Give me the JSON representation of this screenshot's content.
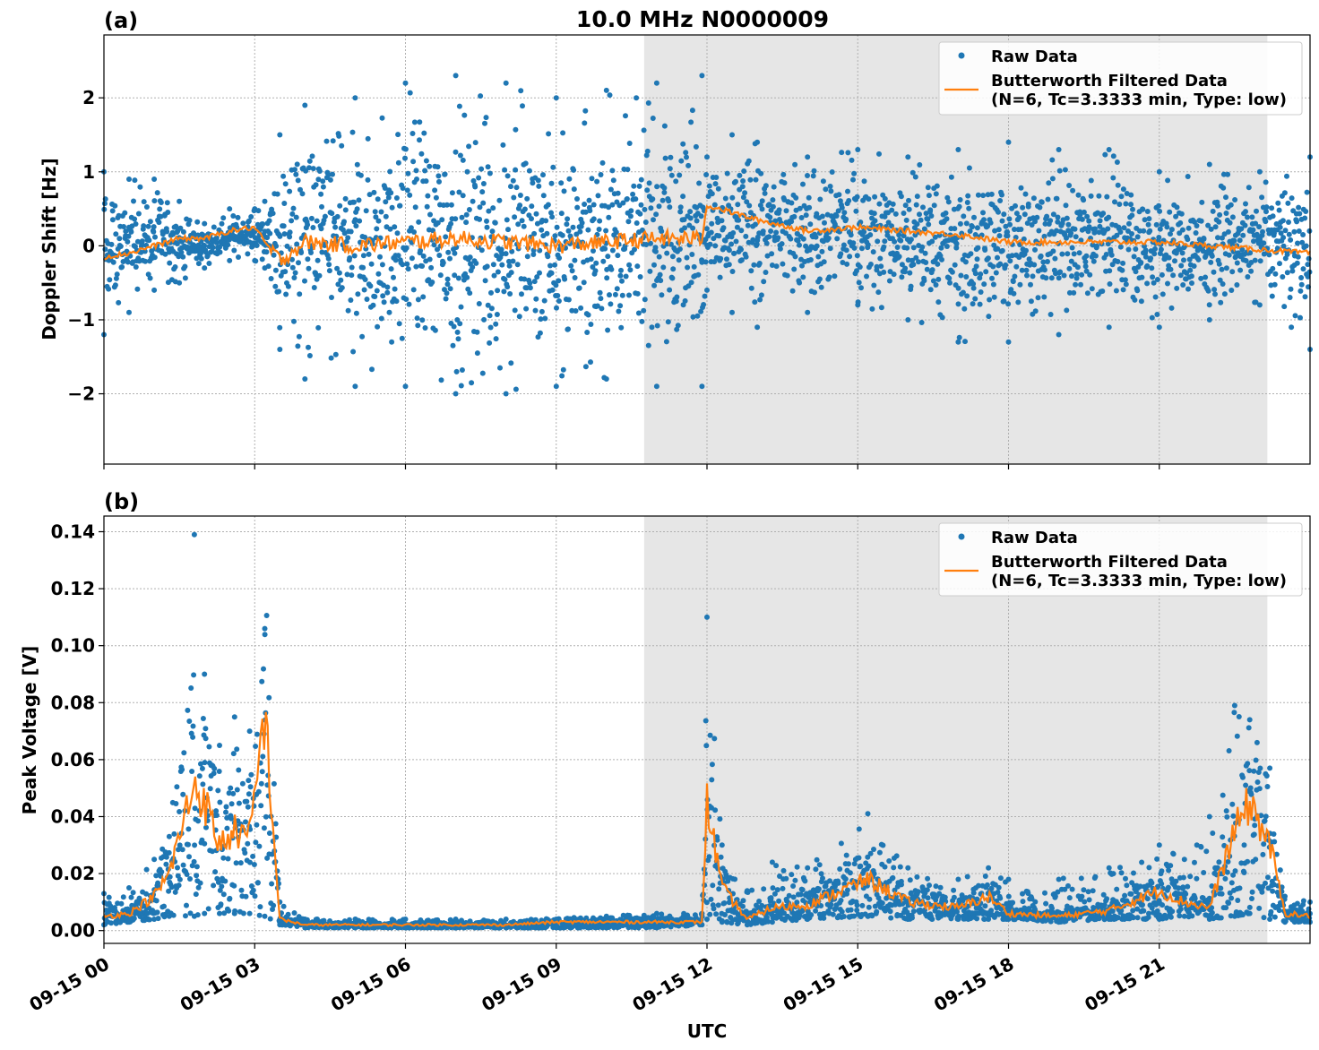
{
  "figure": {
    "title": "10.0 MHz N0000009",
    "xlabel": "UTC",
    "x_tick_labels": [
      "09-15 00",
      "09-15 03",
      "09-15 06",
      "09-15 09",
      "09-15 12",
      "09-15 15",
      "09-15 18",
      "09-15 21"
    ],
    "colors": {
      "raw": "#1f77b4",
      "filtered": "#ff7f0e",
      "shade": "#e6e6e6",
      "grid": "#b0b0b0"
    }
  },
  "legend": {
    "raw": "Raw Data",
    "filtered_line1": "Butterworth Filtered Data",
    "filtered_line2": "(N=6, Tc=3.3333 min, Type: low)"
  },
  "chart_data": [
    {
      "type": "scatter",
      "panel_label": "(a)",
      "title": "10.0 MHz N0000009",
      "xlabel": "",
      "ylabel": "Doppler Shift [Hz]",
      "x_unit": "hours UTC from 2024-09-15 00:00",
      "xlim": [
        0,
        24
      ],
      "ylim": [
        -2.95,
        2.85
      ],
      "yticks": [
        -2,
        -1,
        0,
        1,
        2
      ],
      "ytick_labels": [
        "−2",
        "−1",
        "0",
        "1",
        "2"
      ],
      "grid": true,
      "legend_position": "top-right",
      "shaded_x_range": [
        10.75,
        23.15
      ],
      "series": [
        {
          "name": "Raw Data",
          "style": "points",
          "x": [
            0,
            0.5,
            1,
            1.5,
            2,
            2.5,
            3,
            3.2,
            3.5,
            4,
            5,
            6,
            7,
            8,
            9,
            10,
            11,
            11.9,
            12,
            12.5,
            13,
            14,
            15,
            16,
            17,
            18,
            19,
            20,
            21,
            22,
            23,
            24
          ],
          "y_min": [
            -1.2,
            -0.9,
            -0.6,
            -0.5,
            -0.3,
            -0.2,
            -0.2,
            -0.3,
            -1.4,
            -1.8,
            -1.9,
            -1.9,
            -2.0,
            -2.0,
            -1.9,
            -1.8,
            -1.9,
            -1.9,
            -0.6,
            -0.9,
            -1.1,
            -0.9,
            -0.8,
            -1.0,
            -1.3,
            -1.3,
            -1.2,
            -1.1,
            -1.1,
            -1.0,
            -0.8,
            -1.4
          ],
          "y_max": [
            1.0,
            0.9,
            0.9,
            0.6,
            0.3,
            0.5,
            0.5,
            0.6,
            1.5,
            1.9,
            2.0,
            2.2,
            2.3,
            2.2,
            2.0,
            2.1,
            2.2,
            2.3,
            1.2,
            1.5,
            1.4,
            1.2,
            1.3,
            1.2,
            1.3,
            1.4,
            1.3,
            1.3,
            1.0,
            1.1,
            1.0,
            1.2
          ]
        },
        {
          "name": "Butterworth Filtered Data\n(N=6, Tc=3.3333 min, Type: low)",
          "style": "line",
          "x": [
            0,
            0.5,
            1,
            1.5,
            2,
            2.5,
            3,
            3.2,
            3.5,
            4,
            5,
            6,
            7,
            8,
            9,
            10,
            11,
            11.9,
            12,
            12.5,
            13,
            14,
            15,
            16,
            17,
            18,
            19,
            20,
            21,
            22,
            23,
            24
          ],
          "y": [
            -0.15,
            -0.1,
            0.0,
            0.1,
            0.1,
            0.2,
            0.25,
            0.05,
            -0.2,
            0.05,
            0.0,
            0.05,
            0.1,
            0.05,
            0.0,
            0.05,
            0.1,
            0.1,
            0.55,
            0.45,
            0.35,
            0.2,
            0.25,
            0.2,
            0.15,
            0.05,
            0.05,
            0.05,
            0.05,
            0.0,
            -0.05,
            -0.1
          ]
        }
      ]
    },
    {
      "type": "scatter",
      "panel_label": "(b)",
      "xlabel": "UTC",
      "ylabel": "Peak Voltage [V]",
      "x_unit": "hours UTC from 2024-09-15 00:00",
      "xlim": [
        0,
        24
      ],
      "ylim": [
        -0.0045,
        0.1455
      ],
      "yticks": [
        0.0,
        0.02,
        0.04,
        0.06,
        0.08,
        0.1,
        0.12,
        0.14
      ],
      "ytick_labels": [
        "0.00",
        "0.02",
        "0.04",
        "0.06",
        "0.08",
        "0.10",
        "0.12",
        "0.14"
      ],
      "grid": true,
      "legend_position": "top-right",
      "shaded_x_range": [
        10.75,
        23.15
      ],
      "series": [
        {
          "name": "Raw Data",
          "style": "points",
          "x": [
            0,
            0.5,
            1,
            1.3,
            1.8,
            2.0,
            2.3,
            2.6,
            2.9,
            3.2,
            3.5,
            4,
            5,
            6,
            7,
            8,
            9,
            10,
            11,
            11.9,
            12.0,
            12.3,
            12.8,
            13.3,
            14,
            15.2,
            16,
            17,
            17.6,
            18,
            19,
            20,
            21,
            21.5,
            22,
            22.5,
            22.8,
            23.2,
            23.5,
            24
          ],
          "y_min": [
            0.002,
            0.003,
            0.004,
            0.005,
            0.005,
            0.006,
            0.006,
            0.006,
            0.006,
            0.005,
            0.002,
            0.001,
            0.001,
            0.001,
            0.001,
            0.001,
            0.001,
            0.001,
            0.001,
            0.002,
            0.004,
            0.003,
            0.002,
            0.003,
            0.004,
            0.005,
            0.004,
            0.004,
            0.004,
            0.004,
            0.003,
            0.004,
            0.004,
            0.005,
            0.004,
            0.005,
            0.006,
            0.004,
            0.003,
            0.003
          ],
          "y_max": [
            0.013,
            0.015,
            0.025,
            0.033,
            0.139,
            0.09,
            0.065,
            0.075,
            0.07,
            0.106,
            0.01,
            0.004,
            0.004,
            0.004,
            0.004,
            0.004,
            0.004,
            0.005,
            0.006,
            0.006,
            0.11,
            0.03,
            0.014,
            0.024,
            0.022,
            0.041,
            0.022,
            0.018,
            0.022,
            0.018,
            0.018,
            0.022,
            0.03,
            0.025,
            0.04,
            0.079,
            0.074,
            0.057,
            0.012,
            0.01
          ]
        },
        {
          "name": "Butterworth Filtered Data\n(N=6, Tc=3.3333 min, Type: low)",
          "style": "line",
          "x": [
            0,
            0.5,
            1,
            1.3,
            1.8,
            2.0,
            2.3,
            2.6,
            2.9,
            3.2,
            3.5,
            4,
            5,
            6,
            7,
            8,
            9,
            10,
            11,
            11.9,
            12.0,
            12.3,
            12.8,
            13.3,
            14,
            15.2,
            16,
            17,
            17.6,
            18,
            19,
            20,
            21,
            21.5,
            22,
            22.5,
            22.8,
            23.2,
            23.5,
            24
          ],
          "y": [
            0.005,
            0.006,
            0.012,
            0.02,
            0.052,
            0.045,
            0.03,
            0.035,
            0.032,
            0.077,
            0.004,
            0.002,
            0.002,
            0.002,
            0.002,
            0.002,
            0.003,
            0.003,
            0.003,
            0.003,
            0.045,
            0.015,
            0.004,
            0.008,
            0.009,
            0.018,
            0.01,
            0.008,
            0.012,
            0.006,
            0.005,
            0.007,
            0.014,
            0.01,
            0.008,
            0.035,
            0.045,
            0.03,
            0.006,
            0.005
          ]
        }
      ]
    }
  ]
}
